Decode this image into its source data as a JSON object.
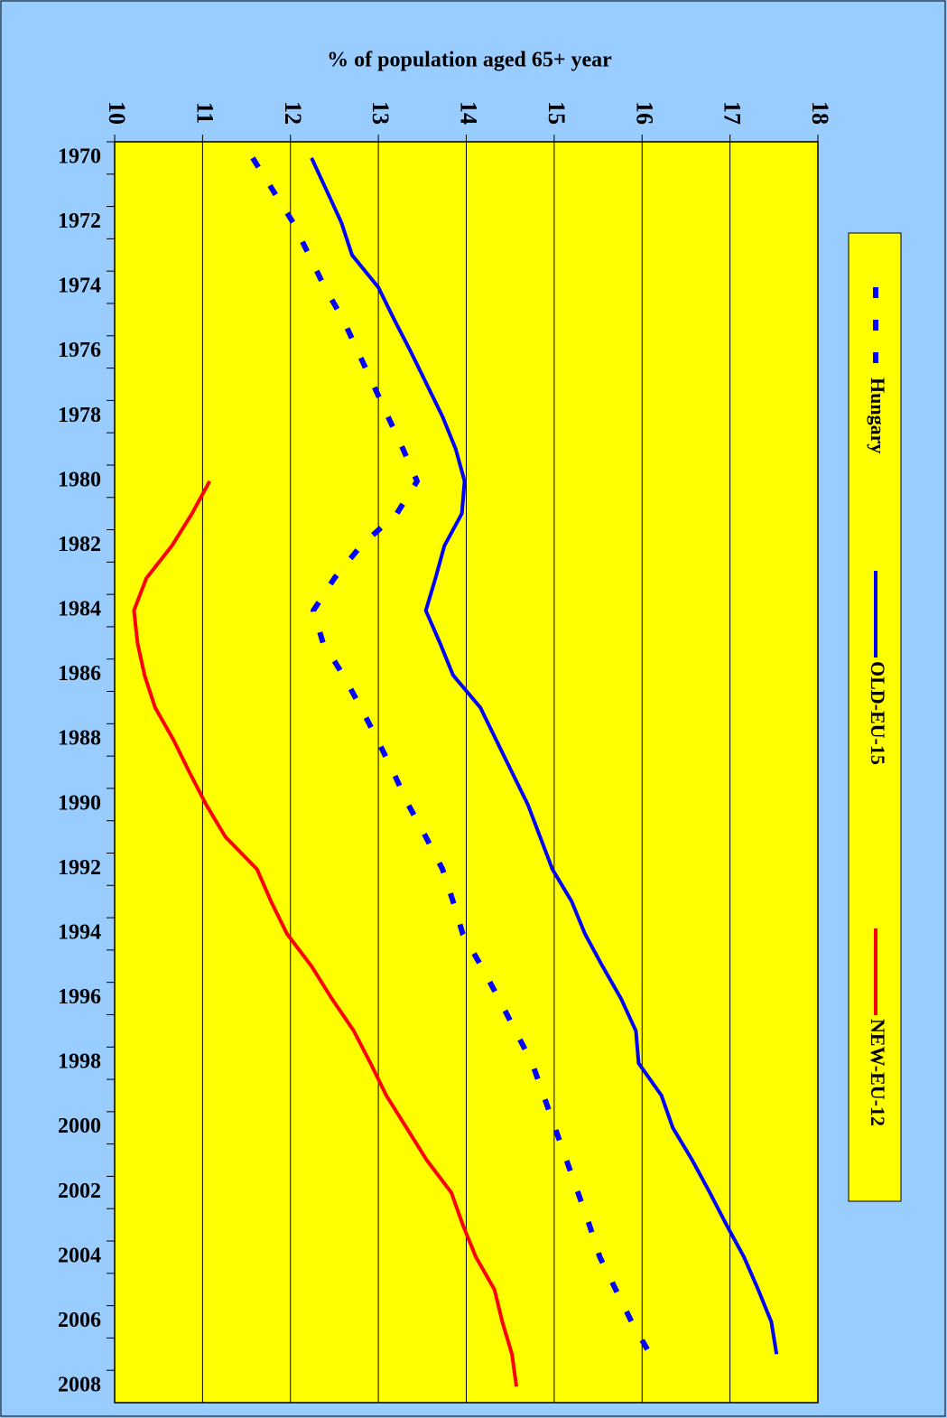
{
  "chart_data": {
    "type": "line",
    "title": "% of population aged 65+ year",
    "categories": [
      "1970",
      null,
      "1972",
      null,
      "1974",
      null,
      "1976",
      null,
      "1978",
      null,
      "1980",
      null,
      "1982",
      null,
      "1984",
      null,
      "1986",
      null,
      "1988",
      null,
      "1990",
      null,
      "1992",
      null,
      "1994",
      null,
      "1996",
      null,
      "1998",
      null,
      "2000",
      null,
      "2002",
      null,
      "2004",
      null,
      "2006",
      null,
      "2008"
    ],
    "xlim": [
      10,
      18
    ],
    "xticks": [
      10,
      11,
      12,
      13,
      14,
      15,
      16,
      17,
      18
    ],
    "grid": true,
    "legend": "right",
    "series": [
      {
        "name": "Hungary",
        "color": "#0000ff",
        "dash": true,
        "values": [
          11.57,
          11.8,
          12.03,
          12.21,
          12.39,
          12.6,
          12.77,
          12.94,
          13.11,
          13.28,
          13.44,
          13.21,
          12.8,
          12.5,
          12.26,
          12.37,
          12.6,
          12.8,
          12.99,
          13.17,
          13.34,
          13.54,
          13.73,
          13.85,
          13.96,
          14.17,
          14.37,
          14.56,
          14.75,
          14.88,
          15.01,
          15.14,
          15.27,
          15.4,
          15.52,
          15.7,
          15.88,
          16.09,
          null
        ]
      },
      {
        "name": "OLD-EU-15",
        "color": "#0000ff",
        "dash": false,
        "values": [
          12.24,
          12.41,
          12.58,
          12.7,
          13.0,
          13.18,
          13.37,
          13.55,
          13.73,
          13.88,
          13.98,
          13.95,
          13.75,
          13.65,
          13.54,
          13.7,
          13.85,
          14.16,
          14.34,
          14.52,
          14.7,
          14.84,
          14.98,
          15.2,
          15.35,
          15.55,
          15.76,
          15.93,
          15.96,
          16.22,
          16.35,
          16.57,
          16.77,
          16.96,
          17.16,
          17.32,
          17.47,
          17.53,
          null
        ]
      },
      {
        "name": "NEW-EU-12",
        "color": "#ff0000",
        "dash": false,
        "values": [
          null,
          null,
          null,
          null,
          null,
          null,
          null,
          null,
          null,
          null,
          11.08,
          10.88,
          10.65,
          10.36,
          10.22,
          10.26,
          10.34,
          10.46,
          10.67,
          10.85,
          11.04,
          11.26,
          11.62,
          11.78,
          11.96,
          12.24,
          12.47,
          12.72,
          12.91,
          13.09,
          13.32,
          13.55,
          13.83,
          13.96,
          14.11,
          14.32,
          14.41,
          14.52,
          14.57
        ]
      }
    ]
  }
}
